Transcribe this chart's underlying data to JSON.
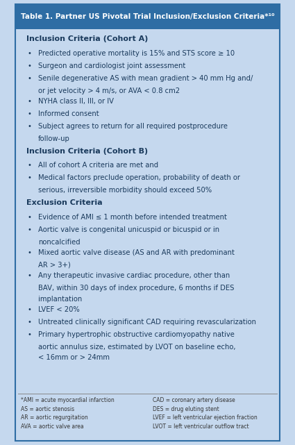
{
  "title": "Table 1. Partner US Pivotal Trial Inclusion/Exclusion Criteria*¹⁰",
  "title_bg": "#2E6DA4",
  "title_color": "#FFFFFF",
  "body_bg": "#C5D8EE",
  "dark_text": "#1a3a5c",
  "sections": [
    {
      "heading": "Inclusion Criteria (Cohort A)",
      "bullets": [
        "Predicted operative mortality is 15% and STS score ≥ 10",
        "Surgeon and cardiologist joint assessment",
        "Senile degenerative AS with mean gradient > 40 mm Hg and/\nor jet velocity > 4 m/s, or AVA < 0.8 cm2",
        "NYHA class II, III, or IV",
        "Informed consent",
        "Subject agrees to return for all required postprocedure\nfollow-up"
      ]
    },
    {
      "heading": "Inclusion Criteria (Cohort B)",
      "bullets": [
        "All of cohort A criteria are met and",
        "Medical factors preclude operation, probability of death or\nserious, irreversible morbidity should exceed 50%"
      ]
    },
    {
      "heading": "Exclusion Criteria",
      "bullets": [
        "Evidence of AMI ≤ 1 month before intended treatment",
        "Aortic valve is congenital unicuspid or bicuspid or in\nnoncalcified",
        "Mixed aortic valve disease (AS and AR with predominant\nAR > 3+)",
        "Any therapeutic invasive cardiac procedure, other than\nBAV, within 30 days of index procedure, 6 months if DES\nimplantation",
        "LVEF < 20%",
        "Untreated clinically significant CAD requiring revascularization",
        "Primary hypertrophic obstructive cardiomyopathy native\naortic annulus size, estimated by LVOT on baseline echo,\n< 16mm or > 24mm"
      ]
    }
  ],
  "footnote_left": "*AMI = acute myocardial infarction\nAS = aortic stenosis\nAR = aortic regurgitation\nAVA = aortic valve area",
  "footnote_right": "CAD = coronary artery disease\nDES = drug eluting stent\nLVEF = left ventricular ejection fraction\nLVOT = left ventricular outflow tract",
  "figsize": [
    4.25,
    6.41
  ],
  "dpi": 100
}
